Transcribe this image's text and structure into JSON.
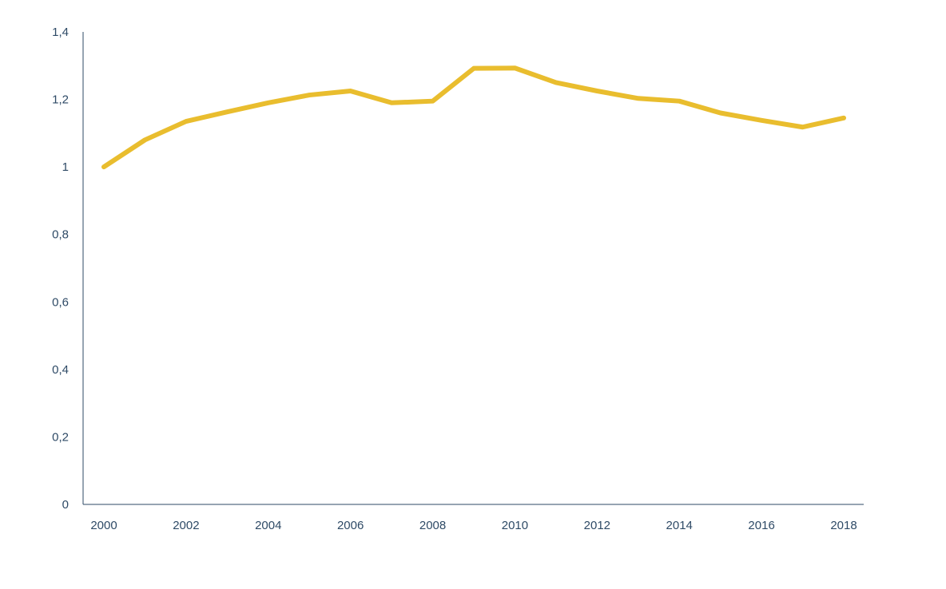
{
  "chart_data": {
    "type": "line",
    "title": "",
    "xlabel": "",
    "ylabel": "",
    "x": [
      2000,
      2001,
      2002,
      2003,
      2004,
      2005,
      2006,
      2007,
      2008,
      2009,
      2010,
      2011,
      2012,
      2013,
      2014,
      2015,
      2016,
      2017,
      2018
    ],
    "series": [
      {
        "values": [
          1.0,
          1.08,
          1.135,
          1.163,
          1.19,
          1.213,
          1.225,
          1.19,
          1.195,
          1.292,
          1.293,
          1.25,
          1.225,
          1.203,
          1.195,
          1.16,
          1.138,
          1.118,
          1.145
        ]
      }
    ],
    "xlim": [
      2000,
      2018
    ],
    "ylim": [
      0,
      1.4
    ],
    "x_ticks": [
      "2000",
      "2002",
      "2004",
      "2006",
      "2008",
      "2010",
      "2012",
      "2014",
      "2016",
      "2018"
    ],
    "y_ticks": [
      "0",
      "0,2",
      "0,4",
      "0,6",
      "0,8",
      "1",
      "1,2",
      "1,4"
    ],
    "grid": false,
    "legend": "none",
    "colors": {
      "line": "#E9BD2E",
      "axis": "#2E4A66",
      "tick_text": "#2E4A66"
    }
  }
}
